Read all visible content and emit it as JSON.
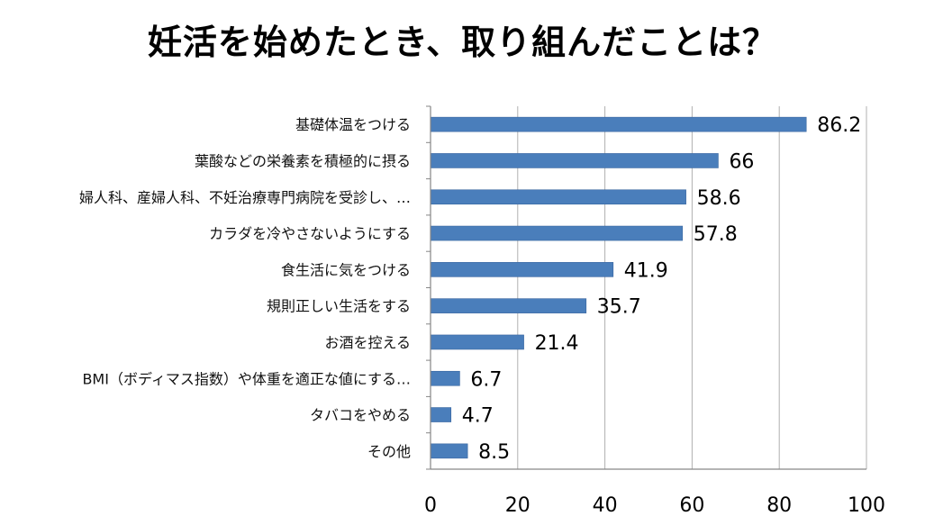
{
  "title": "妊活を始めたとき、取り組んだことは？",
  "colors": {
    "bar": "#4a7ebb",
    "bar_edge": "#3a67a0",
    "grid": "#b0b0b0",
    "axis": "#868686"
  },
  "chart_data": {
    "type": "bar",
    "orientation": "horizontal",
    "title": "妊活を始めたとき、取り組んだことは？",
    "categories": [
      "基礎体温をつける",
      "葉酸などの栄養素を積極的に摂る",
      "婦人科、産婦人科、不妊治療専門病院を受診し、…",
      "カラダを冷やさないようにする",
      "食生活に気をつける",
      "規則正しい生活をする",
      "お酒を控える",
      "BMI（ボディマス指数）や体重を適正な値にする…",
      "タバコをやめる",
      "その他"
    ],
    "values": [
      86.2,
      66,
      58.6,
      57.8,
      41.9,
      35.7,
      21.4,
      6.7,
      4.7,
      8.5
    ],
    "value_labels": [
      "86.2",
      "66",
      "58.6",
      "57.8",
      "41.9",
      "35.7",
      "21.4",
      "6.7",
      "4.7",
      "8.5"
    ],
    "xlim": [
      0,
      100
    ],
    "xticks": [
      0,
      20,
      40,
      60,
      80,
      100
    ],
    "grid": "vertical"
  }
}
